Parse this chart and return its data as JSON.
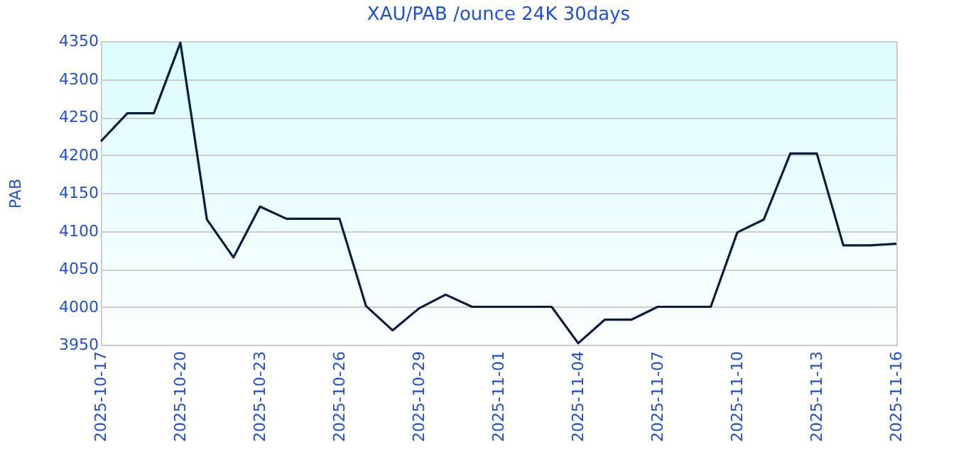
{
  "chart_data": {
    "type": "line",
    "title": "XAU/PAB /ounce 24K 30days",
    "ylabel": "PAB",
    "x": [
      "2025-10-17",
      "2025-10-18",
      "2025-10-19",
      "2025-10-20",
      "2025-10-21",
      "2025-10-22",
      "2025-10-23",
      "2025-10-24",
      "2025-10-25",
      "2025-10-26",
      "2025-10-27",
      "2025-10-28",
      "2025-10-29",
      "2025-10-30",
      "2025-10-31",
      "2025-11-01",
      "2025-11-02",
      "2025-11-03",
      "2025-11-04",
      "2025-11-05",
      "2025-11-06",
      "2025-11-07",
      "2025-11-08",
      "2025-11-09",
      "2025-11-10",
      "2025-11-11",
      "2025-11-12",
      "2025-11-13",
      "2025-11-14",
      "2025-11-15",
      "2025-11-16"
    ],
    "series": [
      {
        "color": "#0b1e3f",
        "values": [
          4218,
          4255,
          4255,
          4348,
          4115,
          4065,
          4132,
          4116,
          4116,
          4116,
          4001,
          3969,
          3998,
          4016,
          4000,
          4000,
          4000,
          4000,
          3952,
          3983,
          3983,
          4000,
          4000,
          4000,
          4098,
          4115,
          4202,
          4202,
          4081,
          4081,
          4083
        ]
      }
    ],
    "xlim": [
      "2025-10-17",
      "2025-11-16"
    ],
    "xticks": [
      "2025-10-17",
      "2025-10-20",
      "2025-10-23",
      "2025-10-26",
      "2025-10-29",
      "2025-11-01",
      "2025-11-04",
      "2025-11-07",
      "2025-11-10",
      "2025-11-13",
      "2025-11-16"
    ],
    "ylim": [
      3950,
      4350
    ],
    "yticks": [
      3950,
      4000,
      4050,
      4100,
      4150,
      4200,
      4250,
      4300,
      4350
    ],
    "grid": "y",
    "marker": "none",
    "line_style": "solid"
  }
}
